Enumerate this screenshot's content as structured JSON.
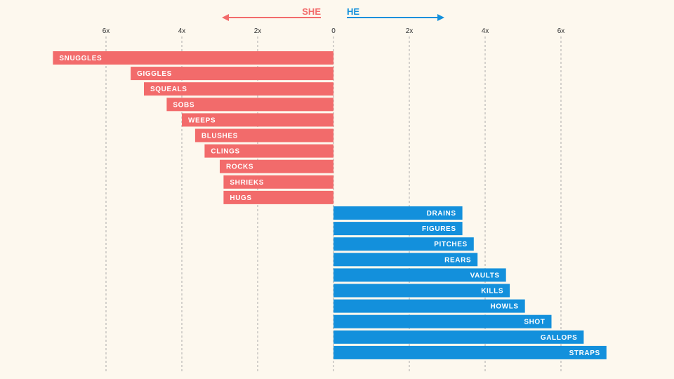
{
  "chart_data": {
    "type": "bar",
    "orientation": "horizontal",
    "diverging": true,
    "directions": {
      "left": "SHE",
      "right": "HE"
    },
    "xticks": [
      "6x",
      "4x",
      "2x",
      "0",
      "2x",
      "4x",
      "6x"
    ],
    "xlim": [
      -7.5,
      7.5
    ],
    "grid": true,
    "colors": {
      "she": "#f26b6b",
      "he": "#1390dc"
    },
    "series": [
      {
        "name": "SHE",
        "categories": [
          "SNUGGLES",
          "GIGGLES",
          "SQUEALS",
          "SOBS",
          "WEEPS",
          "BLUSHES",
          "CLINGS",
          "ROCKS",
          "SHRIEKS",
          "HUGS"
        ],
        "values": [
          7.4,
          5.35,
          5.0,
          4.4,
          4.0,
          3.65,
          3.4,
          3.0,
          2.9,
          2.9
        ]
      },
      {
        "name": "HE",
        "categories": [
          "DRAINS",
          "FIGURES",
          "PITCHES",
          "REARS",
          "VAULTS",
          "KILLS",
          "HOWLS",
          "SHOT",
          "GALLOPS",
          "STRAPS"
        ],
        "values": [
          3.4,
          3.4,
          3.7,
          3.8,
          4.55,
          4.65,
          5.05,
          5.75,
          6.6,
          7.2
        ]
      }
    ]
  }
}
